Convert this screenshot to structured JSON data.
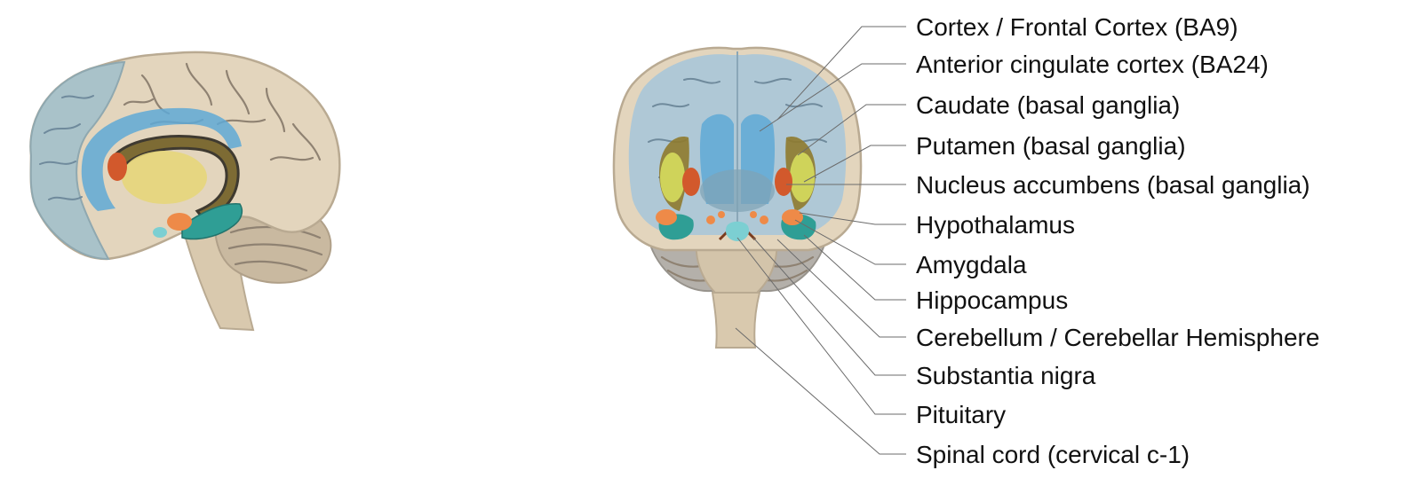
{
  "labels": [
    "Cortex / Frontal Cortex (BA9)",
    "Anterior cingulate cortex (BA24)",
    "Caudate (basal ganglia)",
    "Putamen (basal ganglia)",
    "Nucleus accumbens (basal ganglia)",
    "Hypothalamus",
    "Amygdala",
    "Hippocampus",
    "Cerebellum / Cerebellar Hemisphere",
    "Substantia nigra",
    "Pituitary",
    "Spinal cord (cervical c-1)"
  ],
  "colors": {
    "brain_tan": "#e3d5bd",
    "brain_outline": "#b9aa92",
    "cortex_blue": "#a9c6d8",
    "cingulate_blue": "#5fa9d6",
    "caudate_olive": "#8f7a2e",
    "putamen_yellow": "#cfd35a",
    "accumbens_red": "#d2592c",
    "orange": "#ee8a48",
    "hippocampus_teal": "#2f9e95",
    "pituitary_cyan": "#7ccfd2",
    "cerebellum_grey": "#b4b0aa",
    "label_text": "#111111",
    "leader_line": "#6b6b6b"
  }
}
